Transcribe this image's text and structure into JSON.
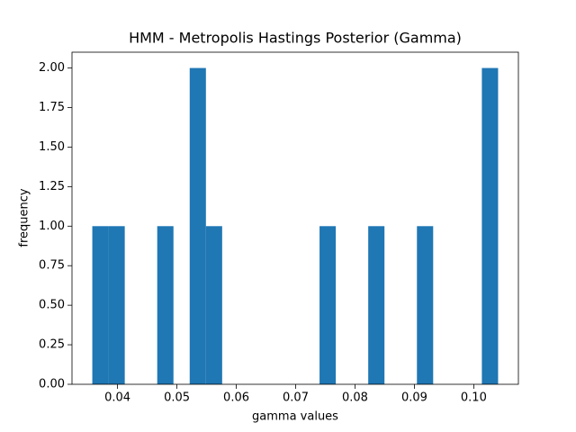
{
  "chart_data": {
    "type": "histogram",
    "title": "HMM - Metropolis Hastings Posterior (Gamma)",
    "x_label": "gamma values",
    "y_label": "frequency",
    "color": "#1f77b4",
    "grid": false,
    "bins": [
      0.03575,
      0.038484,
      0.041218,
      0.043952,
      0.046686,
      0.04942,
      0.052154,
      0.054888,
      0.057622,
      0.060356,
      0.06309,
      0.065824,
      0.068558,
      0.071292,
      0.074026,
      0.07676,
      0.079494,
      0.082228,
      0.084962,
      0.087696,
      0.09043,
      0.093164,
      0.095898,
      0.098632,
      0.101366,
      0.1041
    ],
    "values": [
      1,
      1,
      0,
      0,
      1,
      0,
      2,
      1,
      0,
      0,
      0,
      0,
      0,
      0,
      1,
      0,
      0,
      1,
      0,
      0,
      1,
      0,
      0,
      0,
      2
    ],
    "xlim": [
      0.03233,
      0.10752
    ],
    "xticks": [
      0.04,
      0.05,
      0.06,
      0.07,
      0.08,
      0.09,
      {
        "value": 0.1,
        "label": "0.10"
      }
    ],
    "ylim": [
      0,
      2.1
    ],
    "yticks": [
      {
        "value": 0,
        "label": "0.00"
      },
      {
        "value": 0.25,
        "label": "0.25"
      },
      {
        "value": 0.5,
        "label": "0.50"
      },
      {
        "value": 0.75,
        "label": "0.75"
      },
      {
        "value": 1,
        "label": "1.00"
      },
      {
        "value": 1.25,
        "label": "1.25"
      },
      {
        "value": 1.5,
        "label": "1.50"
      },
      {
        "value": 1.75,
        "label": "1.75"
      },
      {
        "value": 2,
        "label": "2.00"
      }
    ]
  }
}
